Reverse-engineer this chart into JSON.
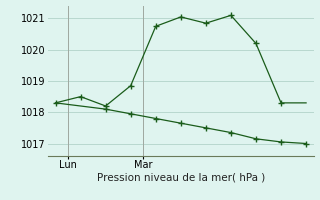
{
  "line1_x": [
    0,
    1,
    2,
    3,
    4,
    5,
    6,
    7,
    8,
    9,
    10
  ],
  "line1_y": [
    1018.3,
    1018.5,
    1018.2,
    1018.85,
    1020.75,
    1021.05,
    1020.85,
    1021.1,
    1020.2,
    1018.3,
    1018.3
  ],
  "line2_x": [
    0,
    1,
    2,
    3,
    4,
    5,
    6,
    7,
    8,
    9,
    10
  ],
  "line2_y": [
    1018.3,
    1018.2,
    1018.1,
    1017.95,
    1017.8,
    1017.65,
    1017.5,
    1017.35,
    1017.15,
    1017.05,
    1017.0
  ],
  "line_color": "#1a5c1a",
  "background_color": "#dff4ef",
  "grid_color": "#b8d8ce",
  "ylim": [
    1016.6,
    1021.4
  ],
  "yticks": [
    1017,
    1018,
    1019,
    1020,
    1021
  ],
  "xlim": [
    -0.3,
    10.3
  ],
  "xtick_positions": [
    0.5,
    3.5
  ],
  "xtick_labels": [
    "Lun",
    "Mar"
  ],
  "vline_positions": [
    0.5,
    3.5
  ],
  "xlabel": "Pression niveau de la mer( hPa )",
  "marker1_x": [
    0,
    1,
    2,
    3,
    4,
    5,
    6,
    7,
    8,
    9
  ],
  "marker1_y": [
    1018.3,
    1018.5,
    1018.2,
    1018.85,
    1020.75,
    1021.05,
    1020.85,
    1021.1,
    1020.2,
    1018.3
  ],
  "marker2_x": [
    2,
    3,
    4,
    5,
    6,
    7,
    8,
    9,
    10
  ],
  "marker2_y": [
    1018.1,
    1017.95,
    1017.8,
    1017.65,
    1017.5,
    1017.35,
    1017.15,
    1017.05,
    1017.0
  ]
}
